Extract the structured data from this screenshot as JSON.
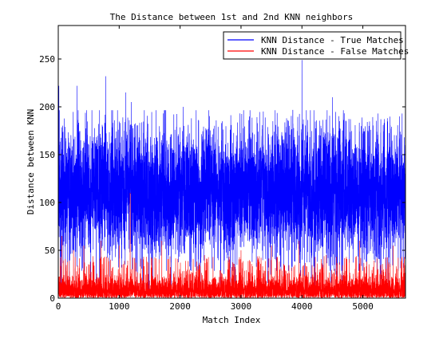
{
  "chart_data": {
    "type": "line",
    "title": "The Distance between 1st and 2nd KNN neighbors",
    "xlabel": "Match Index",
    "ylabel": "Distance between KNN",
    "xlim": [
      0,
      5700
    ],
    "ylim": [
      0,
      285
    ],
    "x_ticks": [
      0,
      1000,
      2000,
      3000,
      4000,
      5000
    ],
    "y_ticks": [
      0,
      50,
      100,
      150,
      200,
      250
    ],
    "grid": false,
    "legend_position": "top-right",
    "n_points": 5700,
    "series": [
      {
        "name": "KNN Distance - True Matches",
        "color": "#0000ff",
        "typical_range": [
          60,
          165
        ],
        "peaks": [
          {
            "x": 10,
            "y": 222
          },
          {
            "x": 310,
            "y": 222
          },
          {
            "x": 780,
            "y": 232
          },
          {
            "x": 1110,
            "y": 215
          },
          {
            "x": 1200,
            "y": 205
          },
          {
            "x": 2050,
            "y": 200
          },
          {
            "x": 4000,
            "y": 249
          },
          {
            "x": 4500,
            "y": 210
          },
          {
            "x": 5100,
            "y": 180
          },
          {
            "x": 5600,
            "y": 190
          }
        ],
        "troughs": [
          {
            "x": 180,
            "y": 12
          },
          {
            "x": 420,
            "y": 25
          },
          {
            "x": 1300,
            "y": 8
          },
          {
            "x": 2900,
            "y": 5
          },
          {
            "x": 3700,
            "y": 10
          },
          {
            "x": 5300,
            "y": 20
          }
        ]
      },
      {
        "name": "KNN Distance - False Matches",
        "color": "#ff0000",
        "typical_range": [
          0,
          22
        ],
        "peaks": [
          {
            "x": 60,
            "y": 65
          },
          {
            "x": 250,
            "y": 50
          },
          {
            "x": 420,
            "y": 55
          },
          {
            "x": 700,
            "y": 60
          },
          {
            "x": 1000,
            "y": 55
          },
          {
            "x": 1180,
            "y": 110
          },
          {
            "x": 1700,
            "y": 60
          },
          {
            "x": 2400,
            "y": 45
          },
          {
            "x": 3000,
            "y": 50
          },
          {
            "x": 3500,
            "y": 55
          },
          {
            "x": 3950,
            "y": 60
          },
          {
            "x": 4400,
            "y": 45
          },
          {
            "x": 4950,
            "y": 60
          },
          {
            "x": 5500,
            "y": 55
          }
        ]
      }
    ]
  }
}
